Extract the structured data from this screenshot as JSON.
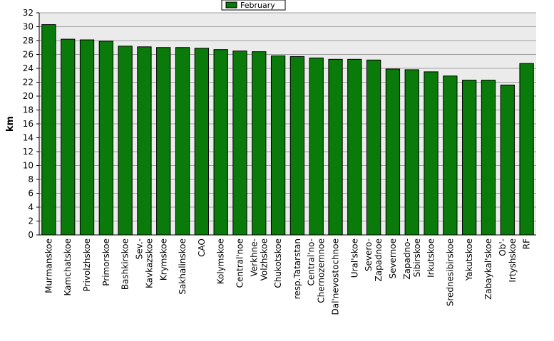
{
  "chart_data": {
    "type": "bar",
    "ylabel": "km",
    "ylim": [
      0,
      32
    ],
    "yticks": [
      0,
      2,
      4,
      6,
      8,
      10,
      12,
      14,
      16,
      18,
      20,
      22,
      24,
      26,
      28,
      30,
      32
    ],
    "grid": true,
    "legend_position": "top-center",
    "series": [
      {
        "name": "February",
        "color": "#0a7a0a",
        "values": [
          30.3,
          28.2,
          28.1,
          27.9,
          27.2,
          27.1,
          27.0,
          27.0,
          26.9,
          26.7,
          26.5,
          26.4,
          25.8,
          25.7,
          25.5,
          25.3,
          25.3,
          25.2,
          23.9,
          23.8,
          23.5,
          22.9,
          22.3,
          22.3,
          21.6,
          24.7
        ]
      }
    ],
    "categories": [
      "Murmanskoe",
      "Kamchatskoe",
      "Privolzhskoe",
      "Primorskoe",
      "Bashkirskoe",
      "Sev.-Kavkazskoe",
      "Krymskoe",
      "Sakhalinskoe",
      "CAO",
      "Kolymskoe",
      "Central'noe",
      "Verkhne-Volzhskoe",
      "Chukotskoe",
      "resp.Tatarstan",
      "Central'no-Chernozemnoe",
      "Dal'nevostochnoe",
      "Ural'skoe",
      "Severo-Zapadnoe",
      "Severnoe",
      "Zapadno-Sibirskoe",
      "Irkutskoe",
      "Srednesibirskoe",
      "Yakutskoe",
      "Zabaykal'skoe",
      "Ob'-Irtyshskoe",
      "RF"
    ],
    "category_display": [
      [
        "Murmanskoe"
      ],
      [
        "Kamchatskoe"
      ],
      [
        "Privolzhskoe"
      ],
      [
        "Primorskoe"
      ],
      [
        "Bashkirskoe"
      ],
      [
        "Sev.-",
        "Kavkazskoe"
      ],
      [
        "Krymskoe"
      ],
      [
        "Sakhalinskoe"
      ],
      [
        "CAO"
      ],
      [
        "Kolymskoe"
      ],
      [
        "Central'noe"
      ],
      [
        "Verkhne-",
        "Volzhskoe"
      ],
      [
        "Chukotskoe"
      ],
      [
        "resp.Tatarstan"
      ],
      [
        "Central'no-",
        "Chernozemnoe"
      ],
      [
        "Dal'nevostochnoe"
      ],
      [
        "Ural'skoe"
      ],
      [
        "Severo-",
        "Zapadnoe"
      ],
      [
        "Severnoe"
      ],
      [
        "Zapadno-",
        "Sibirskoe"
      ],
      [
        "Irkutskoe"
      ],
      [
        "Srednesibirskoe"
      ],
      [
        "Yakutskoe"
      ],
      [
        "Zabaykal'skoe"
      ],
      [
        "Ob'-",
        "Irtyshskoe"
      ],
      [
        "RF"
      ]
    ]
  }
}
